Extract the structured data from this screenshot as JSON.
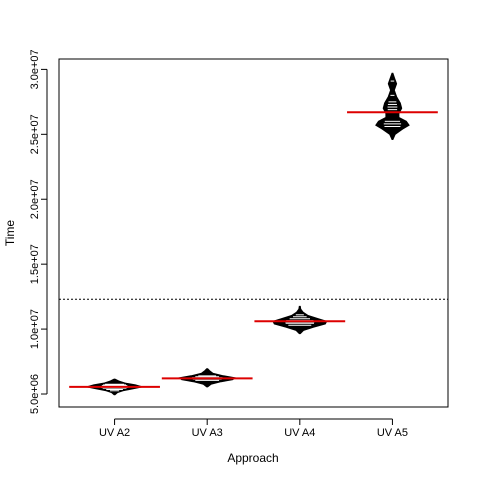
{
  "chart_data": {
    "type": "beanplot",
    "title": "",
    "xlabel": "Approach",
    "ylabel": "Time",
    "categories": [
      "UV A2",
      "UV A3",
      "UV A4",
      "UV A5"
    ],
    "ylim": [
      4000000,
      30800000
    ],
    "yticks": [
      {
        "value": 5000000,
        "label": "5.0e+06"
      },
      {
        "value": 10000000,
        "label": "1.0e+07"
      },
      {
        "value": 15000000,
        "label": "1.5e+07"
      },
      {
        "value": 20000000,
        "label": "2.0e+07"
      },
      {
        "value": 25000000,
        "label": "2.5e+07"
      },
      {
        "value": 30000000,
        "label": "3.0e+07"
      }
    ],
    "overall_mean": 12300000,
    "series": [
      {
        "category": "UV A2",
        "mean": 5550000,
        "density": [
          {
            "y": 4950000,
            "w": 0.01
          },
          {
            "y": 5100000,
            "w": 0.06
          },
          {
            "y": 5250000,
            "w": 0.18
          },
          {
            "y": 5400000,
            "w": 0.4
          },
          {
            "y": 5550000,
            "w": 0.6
          },
          {
            "y": 5700000,
            "w": 0.45
          },
          {
            "y": 5850000,
            "w": 0.22
          },
          {
            "y": 6000000,
            "w": 0.09
          },
          {
            "y": 6150000,
            "w": 0.01
          }
        ],
        "observations": [
          5250000,
          5350000,
          5450000,
          5500000,
          5580000,
          5650000,
          5700000,
          5750000
        ]
      },
      {
        "category": "UV A3",
        "mean": 6200000,
        "density": [
          {
            "y": 5550000,
            "w": 0.01
          },
          {
            "y": 5750000,
            "w": 0.08
          },
          {
            "y": 5950000,
            "w": 0.3
          },
          {
            "y": 6100000,
            "w": 0.55
          },
          {
            "y": 6250000,
            "w": 0.6
          },
          {
            "y": 6400000,
            "w": 0.35
          },
          {
            "y": 6600000,
            "w": 0.12
          },
          {
            "y": 6800000,
            "w": 0.05
          },
          {
            "y": 6950000,
            "w": 0.01
          }
        ],
        "observations": [
          6050000,
          6150000,
          6250000,
          6330000,
          6400000
        ]
      },
      {
        "category": "UV A4",
        "mean": 10600000,
        "density": [
          {
            "y": 9650000,
            "w": 0.01
          },
          {
            "y": 9900000,
            "w": 0.08
          },
          {
            "y": 10150000,
            "w": 0.3
          },
          {
            "y": 10400000,
            "w": 0.55
          },
          {
            "y": 10600000,
            "w": 0.58
          },
          {
            "y": 10800000,
            "w": 0.4
          },
          {
            "y": 11050000,
            "w": 0.18
          },
          {
            "y": 11300000,
            "w": 0.07
          },
          {
            "y": 11550000,
            "w": 0.02
          },
          {
            "y": 11750000,
            "w": 0.01
          }
        ],
        "observations": [
          10300000,
          10450000,
          10550000,
          10650000,
          10800000,
          10950000,
          11100000
        ]
      },
      {
        "category": "UV A5",
        "mean": 26700000,
        "density": [
          {
            "y": 24600000,
            "w": 0.01
          },
          {
            "y": 25000000,
            "w": 0.06
          },
          {
            "y": 25400000,
            "w": 0.22
          },
          {
            "y": 25700000,
            "w": 0.36
          },
          {
            "y": 26000000,
            "w": 0.3
          },
          {
            "y": 26300000,
            "w": 0.14
          },
          {
            "y": 26600000,
            "w": 0.14
          },
          {
            "y": 27000000,
            "w": 0.2
          },
          {
            "y": 27400000,
            "w": 0.17
          },
          {
            "y": 27900000,
            "w": 0.09
          },
          {
            "y": 28400000,
            "w": 0.04
          },
          {
            "y": 28900000,
            "w": 0.09
          },
          {
            "y": 29300000,
            "w": 0.05
          },
          {
            "y": 29700000,
            "w": 0.01
          }
        ],
        "observations": [
          25600000,
          25800000,
          26000000,
          26900000,
          27100000,
          27300000,
          27500000,
          28000000,
          29100000
        ]
      }
    ],
    "colors": {
      "bean_fill": "#000000",
      "bean_lines": "#ffffff",
      "group_mean_line": "#dd0000",
      "overall_mean_line": "#000000",
      "axis": "#000000"
    }
  }
}
